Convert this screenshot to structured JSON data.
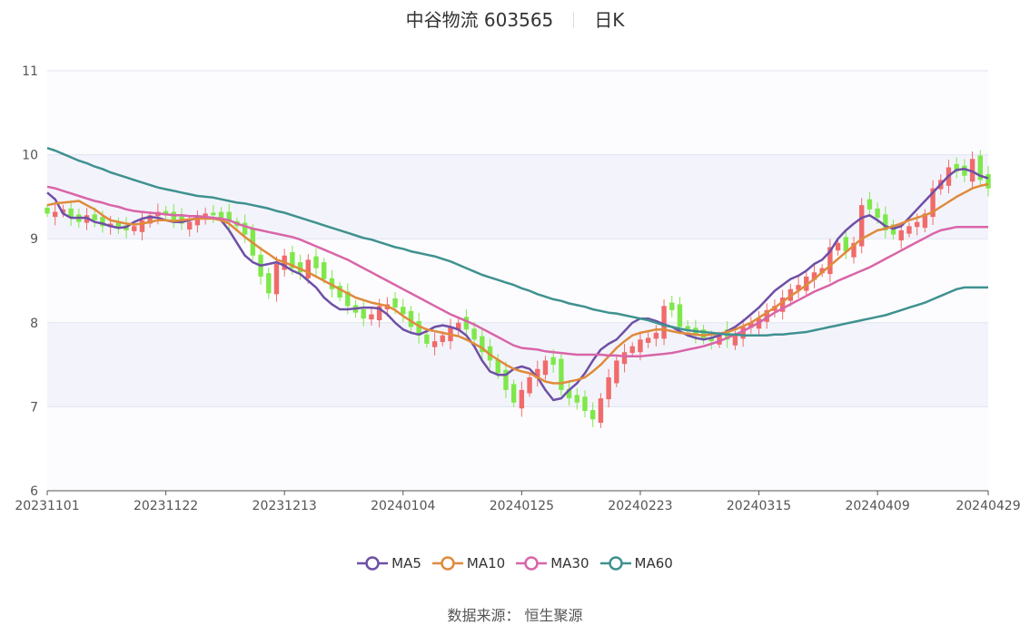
{
  "header": {
    "name": "中谷物流 603565",
    "period": "日K"
  },
  "source": {
    "label": "数据来源：",
    "value": "恒生聚源"
  },
  "chart_data": {
    "type": "candlestick",
    "title": "中谷物流 603565",
    "ylim": [
      6,
      11
    ],
    "yticks": [
      6,
      7,
      8,
      9,
      10,
      11
    ],
    "x_tick_labels": [
      "20231101",
      "20231122",
      "20231213",
      "20240104",
      "20240125",
      "20240223",
      "20240315",
      "20240409",
      "20240429"
    ],
    "x_tick_index": [
      0,
      15,
      30,
      45,
      60,
      75,
      90,
      105,
      119
    ],
    "n_days": 120,
    "grid": true,
    "legend_position": "bottom",
    "up_color": "#f06b6b",
    "down_color": "#7ee84a",
    "closes": [
      9.3,
      9.32,
      9.35,
      9.25,
      9.2,
      9.28,
      9.22,
      9.15,
      9.18,
      9.12,
      9.1,
      9.15,
      9.22,
      9.28,
      9.32,
      9.28,
      9.22,
      9.18,
      9.2,
      9.25,
      9.3,
      9.28,
      9.25,
      9.2,
      9.15,
      9.05,
      8.8,
      8.55,
      8.35,
      8.7,
      8.8,
      8.65,
      8.6,
      8.75,
      8.65,
      8.52,
      8.4,
      8.3,
      8.2,
      8.12,
      8.05,
      8.1,
      8.2,
      8.22,
      8.18,
      8.1,
      7.95,
      7.85,
      7.75,
      7.78,
      7.85,
      7.95,
      8.0,
      7.92,
      7.8,
      7.65,
      7.55,
      7.4,
      7.2,
      7.05,
      7.2,
      7.35,
      7.45,
      7.55,
      7.5,
      7.2,
      7.1,
      7.05,
      6.95,
      6.85,
      7.1,
      7.35,
      7.55,
      7.65,
      7.72,
      7.8,
      7.82,
      7.88,
      8.2,
      8.15,
      7.95,
      7.9,
      7.85,
      7.8,
      7.78,
      7.85,
      7.8,
      7.85,
      7.95,
      8.0,
      8.05,
      8.15,
      8.2,
      8.3,
      8.4,
      8.45,
      8.55,
      8.6,
      8.65,
      8.9,
      8.95,
      8.85,
      8.95,
      9.4,
      9.35,
      9.25,
      9.1,
      9.05,
      9.1,
      9.15,
      9.2,
      9.3,
      9.6,
      9.7,
      9.85,
      9.8,
      9.75,
      9.95,
      9.7,
      9.6
    ],
    "series": [
      {
        "name": "MA5",
        "color": "#6e4fa6",
        "values": [
          9.55,
          9.47,
          9.3,
          9.25,
          9.25,
          9.25,
          9.2,
          9.18,
          9.15,
          9.13,
          9.14,
          9.2,
          9.24,
          9.26,
          9.25,
          9.22,
          9.2,
          9.2,
          9.22,
          9.25,
          9.25,
          9.25,
          9.22,
          9.1,
          8.95,
          8.8,
          8.72,
          8.68,
          8.7,
          8.72,
          8.68,
          8.62,
          8.58,
          8.5,
          8.42,
          8.3,
          8.22,
          8.16,
          8.16,
          8.17,
          8.18,
          8.18,
          8.17,
          8.1,
          8.0,
          7.92,
          7.88,
          7.86,
          7.9,
          7.95,
          7.97,
          7.95,
          7.92,
          7.85,
          7.72,
          7.55,
          7.42,
          7.38,
          7.38,
          7.45,
          7.48,
          7.45,
          7.35,
          7.2,
          7.08,
          7.1,
          7.2,
          7.28,
          7.4,
          7.55,
          7.68,
          7.75,
          7.8,
          7.9,
          8.0,
          8.05,
          8.05,
          8.02,
          7.98,
          7.95,
          7.9,
          7.85,
          7.82,
          7.8,
          7.82,
          7.85,
          7.9,
          7.95,
          8.02,
          8.1,
          8.18,
          8.28,
          8.38,
          8.45,
          8.52,
          8.56,
          8.62,
          8.7,
          8.75,
          8.85,
          9.0,
          9.1,
          9.18,
          9.25,
          9.28,
          9.22,
          9.15,
          9.12,
          9.15,
          9.25,
          9.35,
          9.45,
          9.55,
          9.65,
          9.75,
          9.82,
          9.83,
          9.8,
          9.75,
          9.72
        ]
      },
      {
        "name": "MA10",
        "color": "#e08a3c",
        "values": [
          9.4,
          9.42,
          9.43,
          9.44,
          9.45,
          9.4,
          9.35,
          9.28,
          9.22,
          9.2,
          9.18,
          9.17,
          9.18,
          9.2,
          9.22,
          9.22,
          9.21,
          9.22,
          9.23,
          9.24,
          9.24,
          9.24,
          9.22,
          9.18,
          9.1,
          9.02,
          8.95,
          8.88,
          8.82,
          8.75,
          8.72,
          8.68,
          8.64,
          8.6,
          8.55,
          8.5,
          8.45,
          8.4,
          8.35,
          8.3,
          8.27,
          8.24,
          8.22,
          8.2,
          8.15,
          8.08,
          8.02,
          7.96,
          7.92,
          7.9,
          7.88,
          7.86,
          7.84,
          7.8,
          7.75,
          7.7,
          7.62,
          7.56,
          7.5,
          7.45,
          7.42,
          7.4,
          7.35,
          7.3,
          7.28,
          7.28,
          7.3,
          7.32,
          7.35,
          7.42,
          7.5,
          7.6,
          7.7,
          7.78,
          7.85,
          7.88,
          7.9,
          7.92,
          7.92,
          7.9,
          7.88,
          7.87,
          7.86,
          7.85,
          7.86,
          7.87,
          7.89,
          7.92,
          7.96,
          8.0,
          8.06,
          8.12,
          8.18,
          8.25,
          8.32,
          8.38,
          8.45,
          8.52,
          8.6,
          8.68,
          8.76,
          8.84,
          8.92,
          9.0,
          9.05,
          9.1,
          9.12,
          9.15,
          9.18,
          9.22,
          9.25,
          9.28,
          9.32,
          9.38,
          9.44,
          9.5,
          9.55,
          9.6,
          9.63,
          9.65
        ]
      },
      {
        "name": "MA30",
        "color": "#d965a8",
        "values": [
          9.62,
          9.6,
          9.57,
          9.54,
          9.51,
          9.48,
          9.45,
          9.43,
          9.4,
          9.38,
          9.35,
          9.33,
          9.32,
          9.31,
          9.3,
          9.29,
          9.28,
          9.28,
          9.27,
          9.27,
          9.26,
          9.25,
          9.24,
          9.22,
          9.18,
          9.15,
          9.12,
          9.1,
          9.08,
          9.06,
          9.04,
          9.02,
          8.99,
          8.95,
          8.91,
          8.87,
          8.83,
          8.79,
          8.75,
          8.7,
          8.65,
          8.6,
          8.55,
          8.5,
          8.45,
          8.4,
          8.35,
          8.3,
          8.25,
          8.2,
          8.15,
          8.1,
          8.06,
          8.02,
          7.98,
          7.93,
          7.88,
          7.83,
          7.78,
          7.73,
          7.7,
          7.69,
          7.68,
          7.66,
          7.65,
          7.64,
          7.63,
          7.62,
          7.62,
          7.62,
          7.62,
          7.61,
          7.61,
          7.6,
          7.6,
          7.6,
          7.61,
          7.62,
          7.63,
          7.64,
          7.66,
          7.68,
          7.7,
          7.72,
          7.75,
          7.78,
          7.82,
          7.86,
          7.9,
          7.95,
          8.0,
          8.06,
          8.12,
          8.17,
          8.22,
          8.27,
          8.32,
          8.37,
          8.41,
          8.45,
          8.5,
          8.54,
          8.58,
          8.62,
          8.66,
          8.71,
          8.76,
          8.81,
          8.86,
          8.91,
          8.96,
          9.01,
          9.06,
          9.1,
          9.12,
          9.14,
          9.14,
          9.14,
          9.14,
          9.14
        ]
      },
      {
        "name": "MA60",
        "color": "#3f9190",
        "values": [
          10.08,
          10.05,
          10.01,
          9.97,
          9.93,
          9.9,
          9.86,
          9.83,
          9.79,
          9.76,
          9.73,
          9.7,
          9.67,
          9.64,
          9.61,
          9.59,
          9.57,
          9.55,
          9.53,
          9.51,
          9.5,
          9.49,
          9.47,
          9.45,
          9.43,
          9.42,
          9.4,
          9.38,
          9.36,
          9.33,
          9.31,
          9.28,
          9.25,
          9.22,
          9.19,
          9.16,
          9.13,
          9.1,
          9.07,
          9.04,
          9.01,
          8.99,
          8.96,
          8.93,
          8.9,
          8.88,
          8.85,
          8.83,
          8.81,
          8.79,
          8.76,
          8.73,
          8.69,
          8.65,
          8.61,
          8.57,
          8.54,
          8.51,
          8.48,
          8.45,
          8.41,
          8.38,
          8.34,
          8.31,
          8.28,
          8.26,
          8.23,
          8.21,
          8.19,
          8.16,
          8.14,
          8.12,
          8.11,
          8.09,
          8.07,
          8.05,
          8.03,
          8.0,
          7.97,
          7.95,
          7.93,
          7.91,
          7.9,
          7.89,
          7.88,
          7.87,
          7.86,
          7.86,
          7.85,
          7.85,
          7.85,
          7.85,
          7.86,
          7.86,
          7.87,
          7.88,
          7.89,
          7.91,
          7.93,
          7.95,
          7.97,
          7.99,
          8.01,
          8.03,
          8.05,
          8.07,
          8.09,
          8.12,
          8.15,
          8.18,
          8.21,
          8.24,
          8.28,
          8.32,
          8.36,
          8.4,
          8.42,
          8.42,
          8.42,
          8.42
        ]
      }
    ]
  }
}
